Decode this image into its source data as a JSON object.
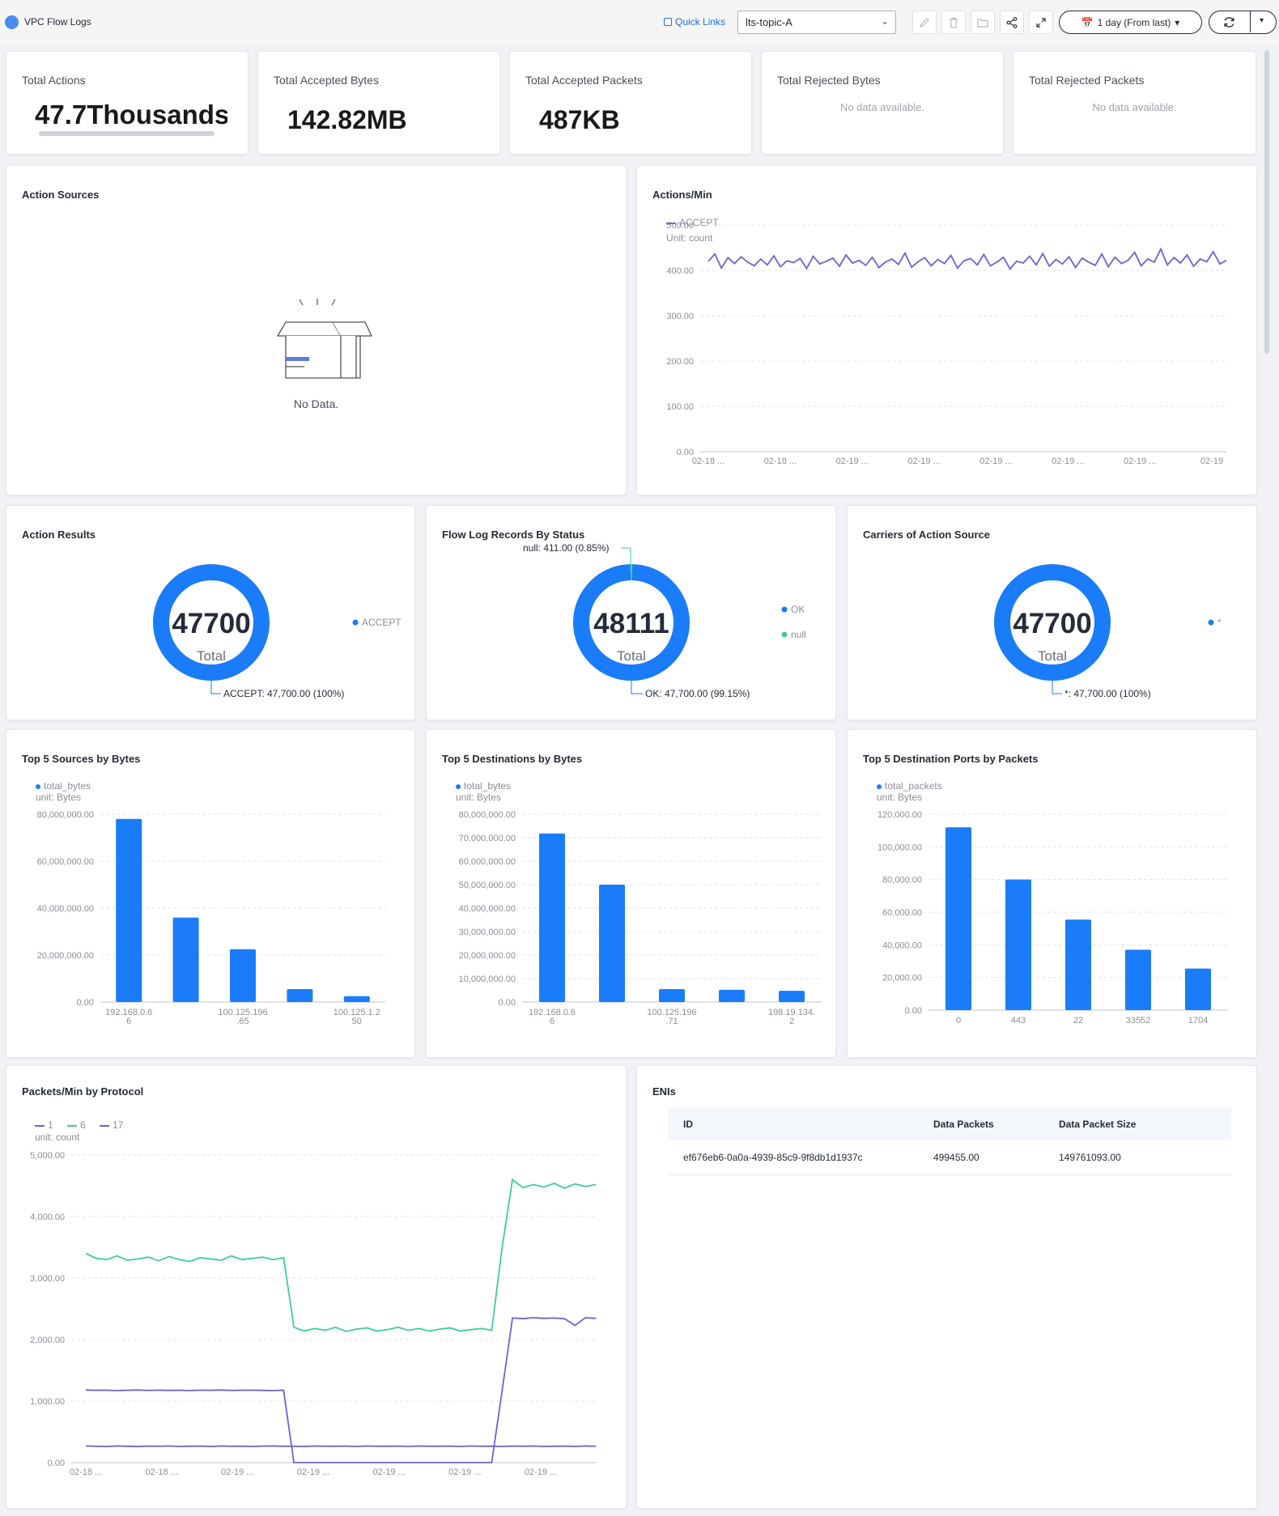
{
  "header": {
    "title": "VPC Flow Logs",
    "quick_links": "Quick Links",
    "topic": "lts-topic-A",
    "time_range": "1 day (From last)"
  },
  "metrics": [
    {
      "label": "Total Actions",
      "value": "47.7Thousands"
    },
    {
      "label": "Total Accepted Bytes",
      "value": "142.82MB"
    },
    {
      "label": "Total Accepted Packets",
      "value": "487KB"
    },
    {
      "label": "Total Rejected Bytes",
      "value": "No data available."
    },
    {
      "label": "Total Rejected Packets",
      "value": "No data available."
    }
  ],
  "action_sources": {
    "title": "Action Sources",
    "empty_text": "No Data."
  },
  "actions_per_min": {
    "title": "Actions/Min",
    "legend": "ACCEPT",
    "unit": "Unit: count"
  },
  "action_results": {
    "title": "Action Results",
    "total": "47700",
    "total_label": "Total",
    "legend": "ACCEPT",
    "callout": "ACCEPT: 47,700.00  (100%)"
  },
  "flow_status": {
    "title": "Flow Log Records By Status",
    "total": "48111",
    "total_label": "Total",
    "legend": [
      "OK",
      "null"
    ],
    "callout_top": "null: 411.00  (0.85%)",
    "callout_bottom": "OK: 47,700.00  (99.15%)"
  },
  "carriers": {
    "title": "Carriers of Action Source",
    "total": "47700",
    "total_label": "Total",
    "legend": "*",
    "callout": "*: 47,700.00  (100%)"
  },
  "top_sources": {
    "title": "Top 5 Sources by Bytes",
    "legend": "total_bytes",
    "unit": "unit:  Bytes"
  },
  "top_destinations": {
    "title": "Top 5 Destinations by Bytes",
    "legend": "total_bytes",
    "unit": "unit:  Bytes"
  },
  "top_ports": {
    "title": "Top 5 Destination Ports by Packets",
    "legend": "total_packets",
    "unit": "unit:  Bytes"
  },
  "packets_protocol": {
    "title": "Packets/Min by Protocol",
    "legend": [
      "1",
      "6",
      "17"
    ],
    "unit": "unit: count"
  },
  "enis": {
    "title": "ENIs",
    "columns": [
      "ID",
      "Data Packets",
      "Data Packet Size"
    ],
    "rows": [
      [
        "ef676eb6-0a0a-4939-85c9-9f8db1d1937c",
        "499455.00",
        "149761093.00"
      ]
    ]
  },
  "colors": {
    "accent": "#1a7cf9",
    "purple": "#6c63d8",
    "teal": "#3ccf9a",
    "link": "#1f6fd6"
  },
  "chart_data": [
    {
      "type": "line",
      "title": "Actions/Min",
      "series": [
        {
          "name": "ACCEPT",
          "values": [
            420,
            436,
            405,
            428,
            415,
            430,
            418,
            410,
            425,
            412,
            432,
            408,
            421,
            417,
            426,
            404,
            431,
            414,
            420,
            427,
            409,
            434,
            416,
            422,
            411,
            429,
            406,
            418,
            425,
            413,
            438,
            407,
            419,
            428,
            410,
            424,
            415,
            433,
            405,
            421,
            426,
            412,
            435,
            410,
            418,
            429,
            403,
            420,
            416,
            431,
            412,
            437,
            409,
            424,
            414,
            430,
            406,
            427,
            418,
            411,
            436,
            408,
            429,
            415,
            422,
            440,
            410,
            425,
            418,
            447,
            412,
            428,
            416,
            434,
            409,
            425,
            419,
            441,
            414,
            422
          ]
        }
      ],
      "x_ticks": [
        "02-18 ...",
        "02-18 ...",
        "02-19 ...",
        "02-19 ...",
        "02-19 ...",
        "02-19 ...",
        "02-19 ...",
        "02-19"
      ],
      "y_ticks": [
        "0.00",
        "100.00",
        "200.00",
        "300.00",
        "400.00",
        "500.00"
      ],
      "ylim": [
        0,
        500
      ]
    },
    {
      "type": "donut",
      "title": "Action Results",
      "slices": [
        {
          "label": "ACCEPT",
          "value": 47700
        }
      ]
    },
    {
      "type": "donut",
      "title": "Flow Log Records By Status",
      "slices": [
        {
          "label": "OK",
          "value": 47700
        },
        {
          "label": "null",
          "value": 411
        }
      ]
    },
    {
      "type": "donut",
      "title": "Carriers of Action Source",
      "slices": [
        {
          "label": "*",
          "value": 47700
        }
      ]
    },
    {
      "type": "bar",
      "title": "Top 5 Sources by Bytes",
      "categories": [
        "192.168.0.6 6",
        "",
        "100.125.196 .65",
        "",
        "100.125.1.2 50"
      ],
      "values": [
        78000000,
        36000000,
        22500000,
        5500000,
        2500000
      ],
      "y_ticks": [
        "0.00",
        "20,000,000.00",
        "40,000,000.00",
        "60,000,000.00",
        "80,000,000.00"
      ],
      "ylim": [
        0,
        80000000
      ]
    },
    {
      "type": "bar",
      "title": "Top 5 Destinations by Bytes",
      "categories": [
        "192.168.0.6 6",
        "",
        "100.125.196 .71",
        "",
        "198.19.134. 2"
      ],
      "values": [
        71800000,
        50000000,
        5500000,
        5200000,
        4800000
      ],
      "y_ticks": [
        "0.00",
        "10,000,000.00",
        "20,000,000.00",
        "30,000,000.00",
        "40,000,000.00",
        "50,000,000.00",
        "60,000,000.00",
        "70,000,000.00",
        "80,000,000.00"
      ],
      "ylim": [
        0,
        80000000
      ]
    },
    {
      "type": "bar",
      "title": "Top 5 Destination Ports by Packets",
      "categories": [
        "0",
        "443",
        "22",
        "33552",
        "1704"
      ],
      "values": [
        112000,
        80000,
        55500,
        37000,
        25500
      ],
      "y_ticks": [
        "0.00",
        "20,000.00",
        "40,000.00",
        "60,000.00",
        "80,000.00",
        "100,000.00",
        "120,000.00"
      ],
      "ylim": [
        0,
        120000
      ]
    },
    {
      "type": "line",
      "title": "Packets/Min by Protocol",
      "series": [
        {
          "name": "1",
          "values": [
            270,
            265,
            262,
            270,
            266,
            260,
            268,
            264,
            270,
            262,
            266,
            268,
            260,
            270,
            264,
            266,
            262,
            268,
            270,
            264,
            265,
            262,
            270,
            264,
            266,
            268,
            262,
            270,
            264,
            266,
            268,
            262,
            270,
            264,
            266,
            268,
            262,
            270,
            264,
            266,
            262,
            268,
            265,
            270,
            262,
            266,
            268,
            262,
            270,
            264
          ]
        },
        {
          "name": "6",
          "values": [
            3400,
            3320,
            3300,
            3360,
            3290,
            3310,
            3340,
            3280,
            3350,
            3300,
            3270,
            3330,
            3310,
            3290,
            3360,
            3300,
            3320,
            3340,
            3300,
            3330,
            2200,
            2140,
            2180,
            2150,
            2200,
            2130,
            2170,
            2190,
            2140,
            2160,
            2200,
            2150,
            2180,
            2140,
            2170,
            2190,
            2140,
            2160,
            2180,
            2150,
            3500,
            4600,
            4470,
            4520,
            4480,
            4540,
            4460,
            4530,
            4490,
            4520
          ]
        },
        {
          "name": "17",
          "values": [
            1180,
            1175,
            1178,
            1170,
            1176,
            1180,
            1172,
            1178,
            1174,
            1176,
            1170,
            1178,
            1175,
            1180,
            1172,
            1176,
            1178,
            1174,
            1170,
            1176,
            0,
            0,
            0,
            0,
            0,
            0,
            0,
            0,
            0,
            0,
            0,
            0,
            0,
            0,
            0,
            0,
            0,
            0,
            0,
            0,
            1170,
            2350,
            2340,
            2355,
            2345,
            2350,
            2340,
            2230,
            2355,
            2345
          ]
        }
      ],
      "x_ticks": [
        "02-18 ...",
        "02-18 ...",
        "02-19 ...",
        "02-19 ...",
        "02-19 ...",
        "02-19 ...",
        "02-19 ..."
      ],
      "y_ticks": [
        "0.00",
        "1,000.00",
        "2,000.00",
        "3,000.00",
        "4,000.00",
        "5,000.00"
      ],
      "ylim": [
        0,
        5000
      ]
    }
  ]
}
